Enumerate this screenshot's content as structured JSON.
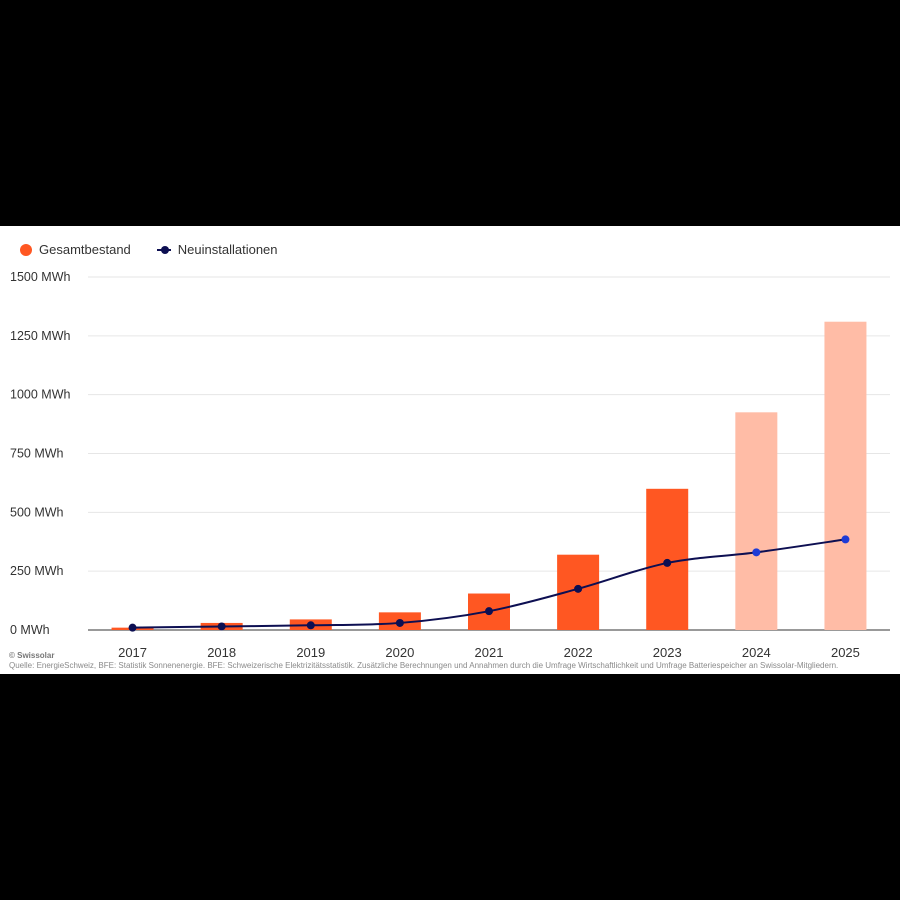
{
  "chart_data": {
    "type": "bar+line",
    "categories": [
      "2017",
      "2018",
      "2019",
      "2020",
      "2021",
      "2022",
      "2023",
      "2024",
      "2025"
    ],
    "series": [
      {
        "name": "Gesamtbestand",
        "type": "bar",
        "values": [
          10,
          30,
          45,
          75,
          155,
          320,
          600,
          925,
          1310
        ],
        "projected": [
          false,
          false,
          false,
          false,
          false,
          false,
          false,
          true,
          true
        ]
      },
      {
        "name": "Neuinstallationen",
        "type": "line",
        "values": [
          10,
          15,
          20,
          30,
          80,
          175,
          285,
          330,
          385
        ]
      }
    ],
    "ylim": [
      0,
      1500
    ],
    "yticks": [
      0,
      250,
      500,
      750,
      1000,
      1250,
      1500
    ],
    "yticks_labels": [
      "0 MWh",
      "250 MWh",
      "500 MWh",
      "750 MWh",
      "1000 MWh",
      "1250 MWh",
      "1500 MWh"
    ],
    "grid": true,
    "legend_position": "top-left"
  },
  "colors": {
    "bar": "#ff5722",
    "bar_projected": "#ffbca6",
    "line": "#0d0f52",
    "point_projected": "#1e3bd6",
    "grid": "#e6e6e6",
    "axis": "#333333"
  },
  "legend": {
    "bar_label": "Gesamtbestand",
    "line_label": "Neuinstallationen"
  },
  "footer": {
    "copyright": "© Swissolar",
    "source": "Quelle: EnergieSchweiz, BFE: Statistik Sonnenenergie. BFE: Schweizerische Elektrizitätsstatistik. Zusätzliche Berechnungen und Annahmen durch die Umfrage Wirtschaftlichkeit und Umfrage Batteriespeicher an Swissolar-Mitgliedern."
  }
}
